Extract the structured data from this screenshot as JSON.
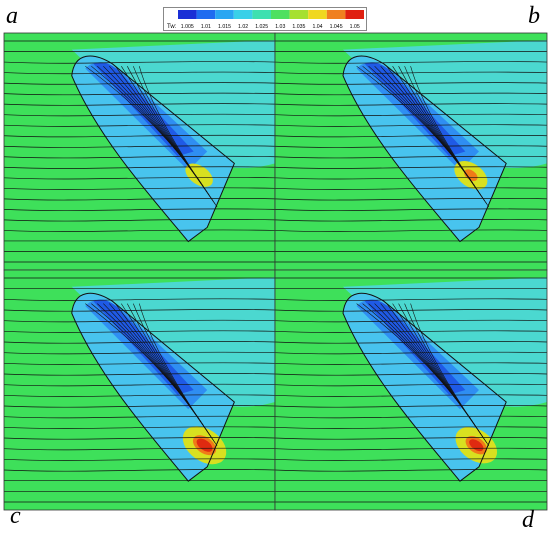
{
  "panel_labels": {
    "a": "a",
    "b": "b",
    "c": "c",
    "d": "d"
  },
  "colorbar": {
    "title": "Tw:",
    "ticks": [
      "1.005",
      "1.01",
      "1.015",
      "1.02",
      "1.025",
      "1.03",
      "1.035",
      "1.04",
      "1.045",
      "1.05"
    ],
    "colors": [
      "#1a2fd6",
      "#1f6cf0",
      "#29a6f2",
      "#3ad0e8",
      "#3ee0b0",
      "#4ee060",
      "#a6e030",
      "#f0d820",
      "#f08020",
      "#e02010"
    ]
  },
  "field_colors": {
    "background": "#3ee05a",
    "cyan": "#4bd8d0",
    "light_blue": "#48c4ee",
    "mid_blue": "#2f8ef2",
    "deep_blue": "#1f5ae6",
    "yellow": "#d8e020",
    "orange": "#f07a18",
    "red": "#e02a10",
    "streamline": "#111111"
  }
}
